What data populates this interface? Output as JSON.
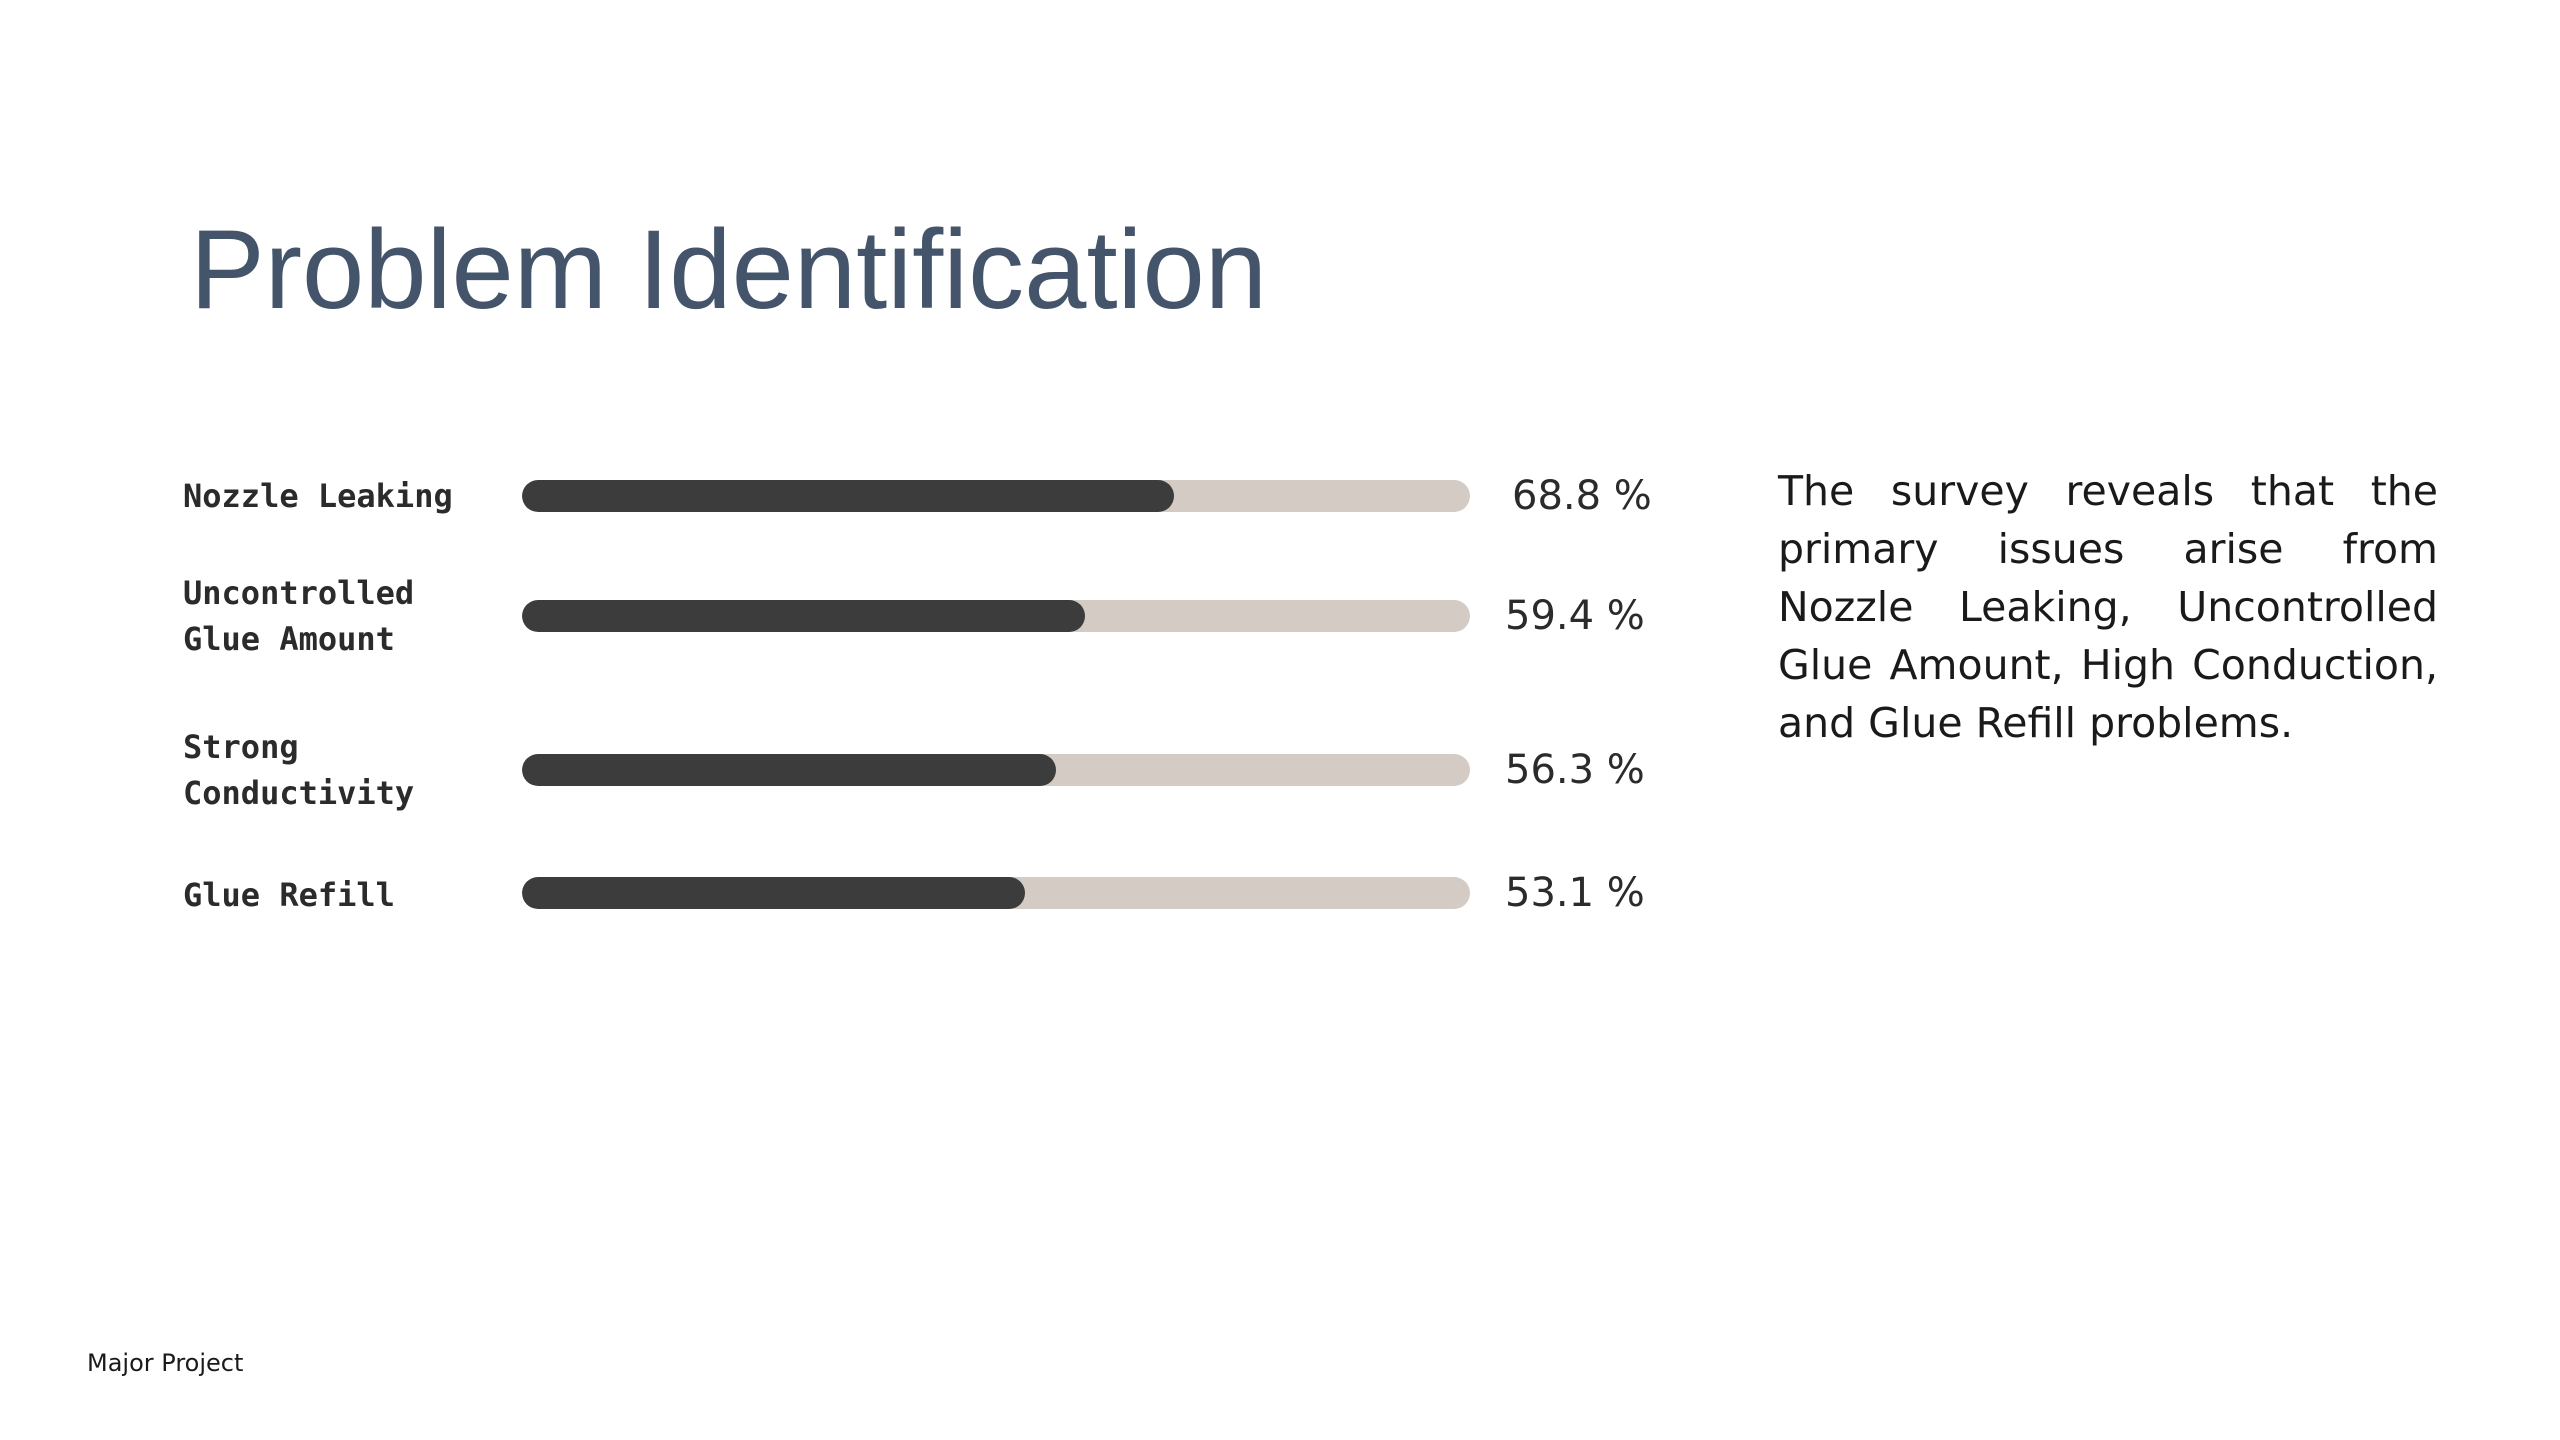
{
  "slide": {
    "title": "Problem Identification",
    "summary": "The survey reveals that the primary issues arise from Nozzle Leaking, Uncontrolled Glue Amount, High Conduction, and Glue Refill problems.",
    "footer": "Major Project"
  },
  "colors": {
    "title": "#44546a",
    "bar_fill": "#3c3c3c",
    "bar_track": "#d4ccc4"
  },
  "chart_data": {
    "type": "bar",
    "orientation": "horizontal",
    "title": "",
    "xlabel": "",
    "ylabel": "",
    "xlim": [
      0,
      100
    ],
    "categories": [
      "Nozzle Leaking",
      "Uncontrolled\nGlue Amount",
      "Strong\nConductivity",
      "Glue Refill"
    ],
    "values": [
      68.8,
      59.4,
      56.3,
      53.1
    ],
    "value_labels": [
      "68.8 %",
      "59.4 %",
      "56.3 %",
      "53.1 %"
    ],
    "grid": false,
    "legend": "none"
  }
}
